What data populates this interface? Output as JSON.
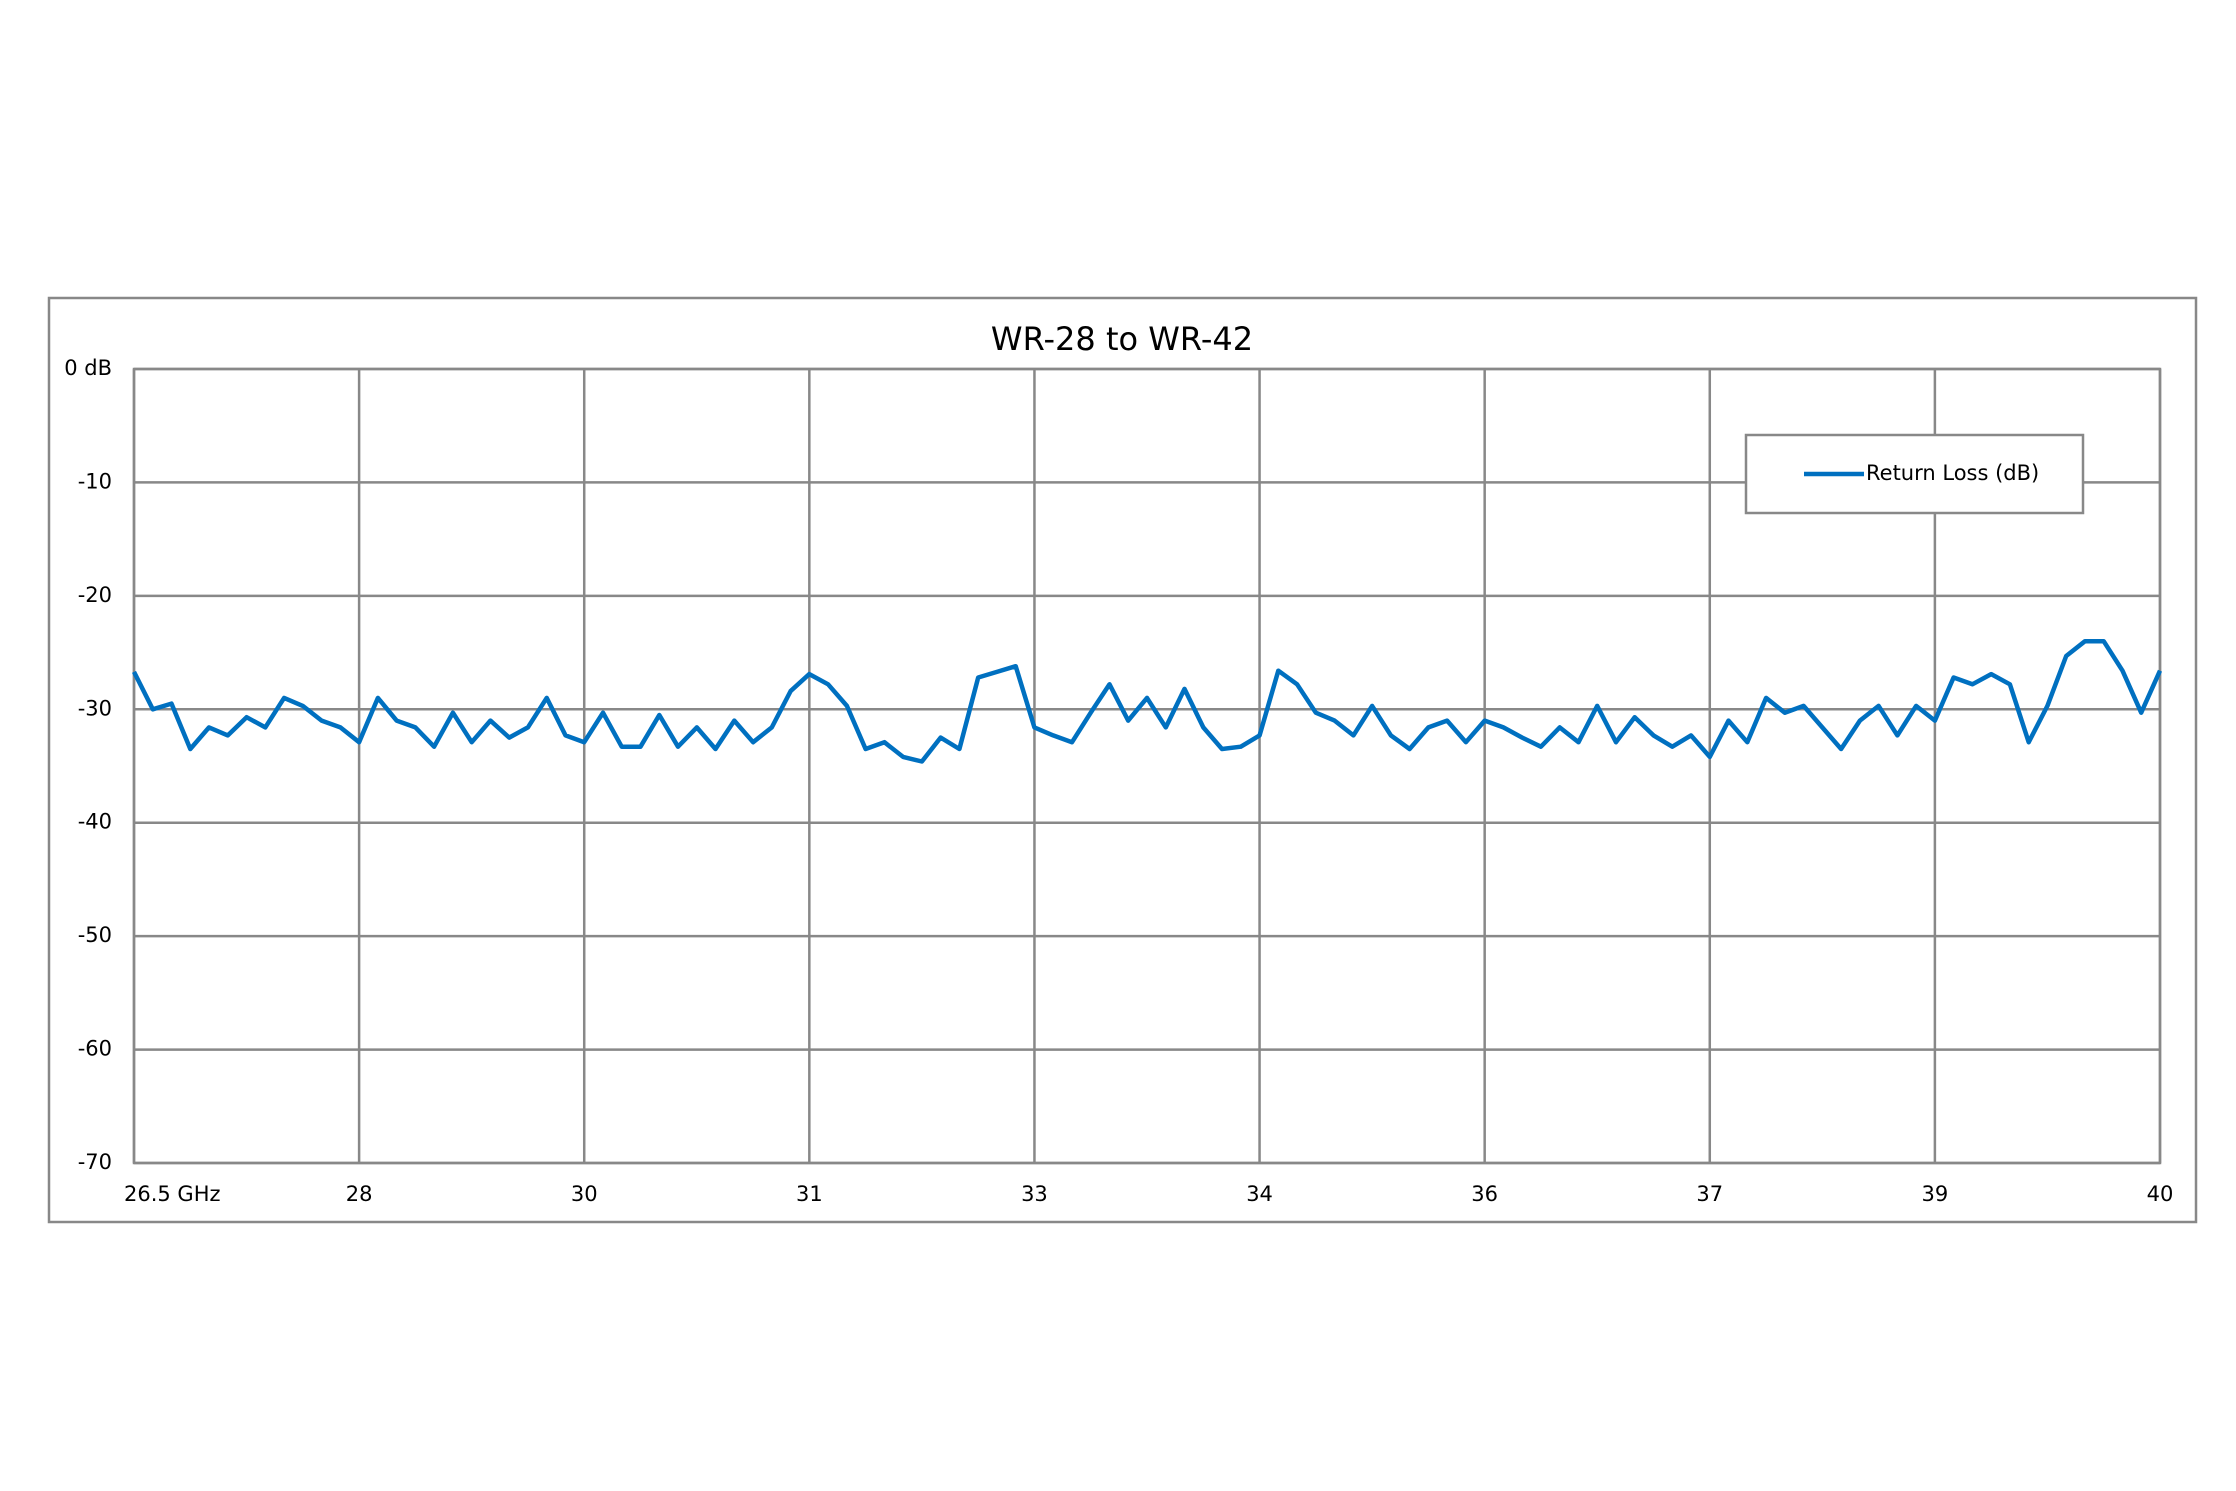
{
  "chart_data": {
    "type": "line",
    "title": "WR-28 to WR-42",
    "x": [
      26.5,
      26.625,
      26.75,
      26.875,
      27,
      27.125,
      27.25,
      27.375,
      27.5,
      27.625,
      27.75,
      27.875,
      28,
      28.125,
      28.25,
      28.375,
      28.5,
      28.625,
      28.75,
      28.875,
      29,
      29.125,
      29.25,
      29.375,
      29.5,
      29.625,
      29.75,
      29.875,
      30,
      30.125,
      30.25,
      30.375,
      30.5,
      30.625,
      30.75,
      30.875,
      31,
      31.125,
      31.25,
      31.375,
      31.5,
      31.625,
      31.75,
      31.875,
      32,
      32.125,
      32.25,
      32.375,
      32.5,
      32.625,
      32.75,
      32.875,
      33,
      33.125,
      33.25,
      33.375,
      33.5,
      33.625,
      33.75,
      33.875,
      34,
      34.125,
      34.25,
      34.375,
      34.5,
      34.625,
      34.75,
      34.875,
      35,
      35.125,
      35.25,
      35.375,
      35.5,
      35.625,
      35.75,
      35.875,
      36,
      36.125,
      36.25,
      36.375,
      36.5,
      36.625,
      36.75,
      36.875,
      37,
      37.125,
      37.25,
      37.375,
      37.5,
      37.625,
      37.75,
      37.875,
      38,
      38.125,
      38.25,
      38.375,
      38.5,
      38.625,
      38.75,
      38.875,
      39,
      39.125,
      39.25,
      39.375,
      39.5,
      39.625,
      39.75,
      39.875,
      40
    ],
    "series": [
      {
        "name": "Return Loss (dB)",
        "color": "#0070c0",
        "values": [
          -26.7,
          -30,
          -29.5,
          -33.5,
          -31.6,
          -32.3,
          -30.7,
          -31.6,
          -29,
          -29.7,
          -31,
          -31.6,
          -32.9,
          -29,
          -31,
          -31.6,
          -33.3,
          -30.3,
          -32.9,
          -31,
          -32.5,
          -31.6,
          -29,
          -32.3,
          -32.9,
          -30.3,
          -33.3,
          -33.3,
          -30.5,
          -33.3,
          -31.6,
          -33.5,
          -31,
          -32.9,
          -31.6,
          -28.4,
          -26.9,
          -27.8,
          -29.7,
          -33.5,
          -32.9,
          -34.2,
          -34.6,
          -32.5,
          -33.5,
          -27.2,
          -26.7,
          -26.2,
          -31.6,
          -32.3,
          -32.9,
          -30.3,
          -27.8,
          -31,
          -29,
          -31.6,
          -28.2,
          -31.6,
          -33.5,
          -33.3,
          -32.3,
          -26.6,
          -27.8,
          -30.3,
          -31,
          -32.3,
          -29.7,
          -32.3,
          -33.5,
          -31.6,
          -31,
          -32.9,
          -31,
          -31.6,
          -32.5,
          -33.3,
          -31.6,
          -32.9,
          -29.7,
          -32.9,
          -30.7,
          -32.3,
          -33.3,
          -32.3,
          -34.2,
          -31,
          -32.9,
          -29,
          -30.3,
          -29.7,
          -31.6,
          -33.5,
          -31,
          -29.7,
          -32.3,
          -29.7,
          -31,
          -27.2,
          -27.8,
          -26.9,
          -27.8,
          -32.9,
          -29.7,
          -25.3,
          -24,
          -24,
          -26.6,
          -30.3,
          -26.6
        ]
      }
    ],
    "xlim": [
      26.5,
      40
    ],
    "xticks": [
      {
        "value": 26.5,
        "label": "26.5 GHz"
      },
      28,
      {
        "value": 29.5,
        "label": "30"
      },
      31,
      {
        "value": 32.5,
        "label": "33"
      },
      34,
      {
        "value": 35.5,
        "label": "36"
      },
      37,
      {
        "value": 38.5,
        "label": "39"
      },
      40
    ],
    "ylim": [
      -70,
      0
    ],
    "yticks": [
      {
        "value": 0,
        "label": "0 dB"
      },
      -10,
      -20,
      -30,
      -40,
      -50,
      -60,
      -70
    ],
    "grid": true,
    "legend": "upper right"
  }
}
